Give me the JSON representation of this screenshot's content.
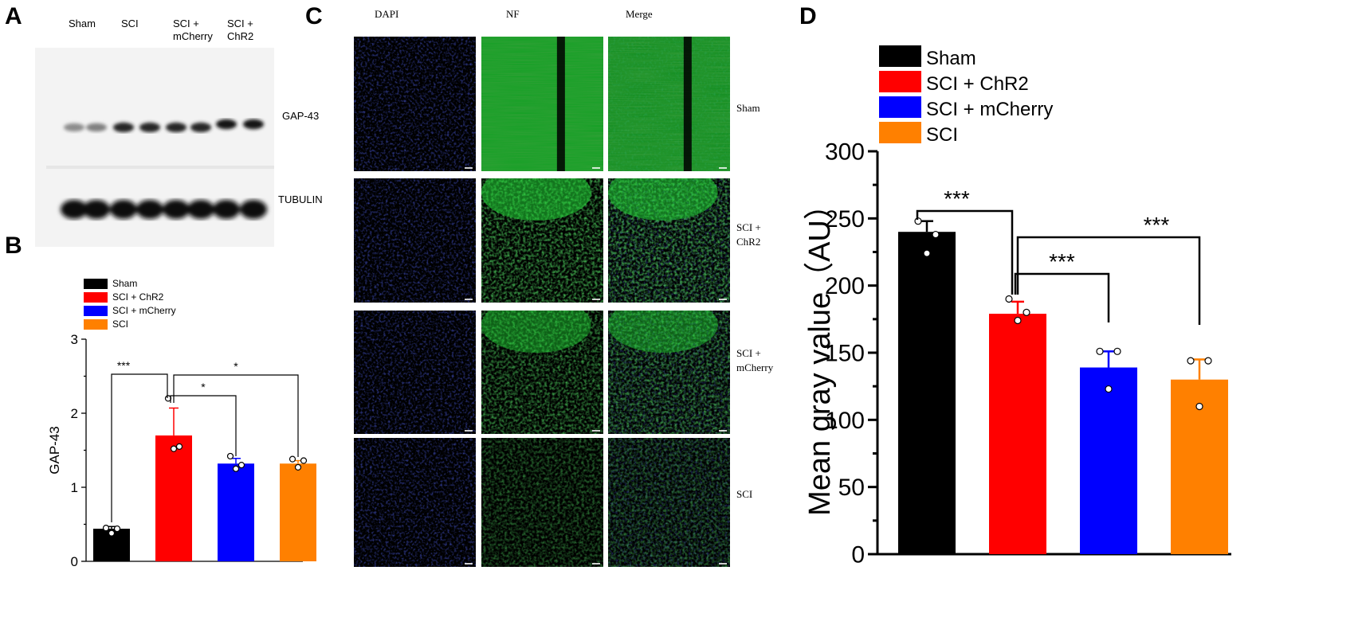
{
  "panels": {
    "a": "A",
    "b": "B",
    "c": "C",
    "d": "D"
  },
  "blot": {
    "lanes": [
      "Sham",
      "SCI",
      "SCI +\nmCherry",
      "SCI +\nChR2"
    ],
    "rows": [
      "GAP-43",
      "TUBULIN"
    ],
    "gap43_band_intensity": [
      0.45,
      0.5,
      0.85,
      0.85,
      0.85,
      0.85,
      0.9,
      0.9
    ],
    "tubulin_band_intensity": [
      0.95,
      0.95,
      0.95,
      0.95,
      0.95,
      0.95,
      0.95,
      0.95
    ]
  },
  "micrograph": {
    "columns": [
      "DAPI",
      "NF",
      "Merge"
    ],
    "rows": [
      "Sham",
      "SCI +\nChR2",
      "SCI +\nmCherry",
      "SCI"
    ],
    "colors": {
      "dapi": "#1a2ad8",
      "nf": "#22d636",
      "background": "#000000"
    }
  },
  "chart_data": [
    {
      "panel": "B",
      "type": "bar",
      "categories": [
        "Sham",
        "SCI + ChR2",
        "SCI + mCherry",
        "SCI"
      ],
      "values": [
        0.44,
        1.7,
        1.32,
        1.32
      ],
      "errors": [
        0.03,
        0.37,
        0.07,
        0.04
      ],
      "points": [
        [
          0.45,
          0.44,
          0.38
        ],
        [
          2.2,
          1.55,
          1.52
        ],
        [
          1.42,
          1.3,
          1.25
        ],
        [
          1.38,
          1.36,
          1.27
        ]
      ],
      "colors": [
        "#000000",
        "#ff0000",
        "#0000ff",
        "#ff8000"
      ],
      "legend": [
        "Sham",
        "SCI + ChR2",
        "SCI + mCherry",
        "SCI"
      ],
      "ylabel": "GAP-43",
      "ylim": [
        0,
        3
      ],
      "yticks": [
        0,
        1,
        2,
        3
      ],
      "significance": [
        {
          "from": 0,
          "to": 1,
          "label": "***"
        },
        {
          "from": 1,
          "to": 2,
          "label": "*"
        },
        {
          "from": 1,
          "to": 3,
          "label": "*"
        }
      ]
    },
    {
      "panel": "D",
      "type": "bar",
      "categories": [
        "Sham",
        "SCI + ChR2",
        "SCI + mCherry",
        "SCI"
      ],
      "values": [
        240,
        179,
        139,
        130
      ],
      "errors": [
        8,
        9,
        12,
        15
      ],
      "points": [
        [
          248,
          238,
          224
        ],
        [
          190,
          180,
          174
        ],
        [
          151,
          151,
          123
        ],
        [
          144,
          144,
          110
        ]
      ],
      "colors": [
        "#000000",
        "#ff0000",
        "#0000ff",
        "#ff8000"
      ],
      "legend": [
        "Sham",
        "SCI + ChR2",
        "SCI + mCherry",
        "SCI"
      ],
      "ylabel": "Mean gray value（AU）",
      "ylim": [
        0,
        300
      ],
      "yticks": [
        0,
        50,
        100,
        150,
        200,
        250,
        300
      ],
      "significance": [
        {
          "from": 0,
          "to": 1,
          "label": "***"
        },
        {
          "from": 1,
          "to": 2,
          "label": "***"
        },
        {
          "from": 1,
          "to": 3,
          "label": "***"
        }
      ]
    }
  ]
}
